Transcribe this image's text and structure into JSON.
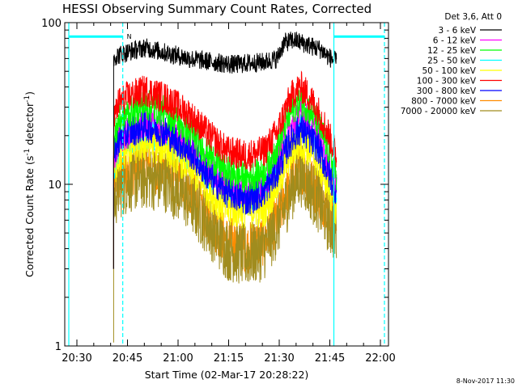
{
  "chart_data": {
    "type": "line",
    "title": "HESSI Observing Summary Count Rates, Corrected",
    "xlabel": "Start Time (02-Mar-17 20:28:22)",
    "ylabel_main": "Corrected Count Rate (s",
    "ylabel_sup1": "-1",
    "ylabel_mid": " detector",
    "ylabel_sup2": "-1",
    "ylabel_end": ")",
    "x_unit": "minutes since 20:28:22",
    "xlim": [
      -2,
      94
    ],
    "ylim": [
      1,
      100
    ],
    "yscale": "log",
    "x_ticks": [
      {
        "label": "20:30",
        "value": 1.6
      },
      {
        "label": "20:45",
        "value": 16.6
      },
      {
        "label": "21:00",
        "value": 31.6
      },
      {
        "label": "21:15",
        "value": 46.6
      },
      {
        "label": "21:30",
        "value": 61.6
      },
      {
        "label": "21:45",
        "value": 76.6
      },
      {
        "label": "22:00",
        "value": 91.6
      }
    ],
    "y_ticks": [
      {
        "label": "1",
        "value": 1
      },
      {
        "label": "10",
        "value": 10
      },
      {
        "label": "100",
        "value": 100
      }
    ],
    "legend_header": "Det 3,6, Att 0",
    "timestamp": "8-Nov-2017 11:30",
    "night_marker": "N",
    "series": [
      {
        "name": "3 - 6 keV",
        "color": "#000000",
        "x": [
          12.5,
          13,
          15,
          18,
          22,
          28,
          35,
          42,
          48,
          52,
          57,
          61,
          63,
          66,
          70,
          74,
          76,
          78,
          78.6
        ],
        "y": [
          60,
          62,
          64,
          67,
          70,
          65,
          60,
          57,
          55,
          56,
          57,
          60,
          75,
          78,
          73,
          68,
          62,
          58,
          57
        ]
      },
      {
        "name": "6 - 12 keV",
        "color": "#ff00ff",
        "x": [
          12.5,
          14,
          17,
          22,
          28,
          35,
          41,
          46,
          52,
          57,
          61,
          64,
          66,
          68,
          70,
          73,
          76,
          78.6
        ],
        "y": [
          14,
          19,
          21,
          24,
          22,
          17,
          12,
          10,
          9,
          10,
          14,
          20,
          24,
          27,
          25,
          20,
          14,
          10
        ]
      },
      {
        "name": "12 - 25 keV",
        "color": "#00ff00",
        "x": [
          12.5,
          14,
          17,
          22,
          28,
          35,
          41,
          46,
          52,
          57,
          61,
          64,
          66,
          68,
          70,
          73,
          76,
          78.6
        ],
        "y": [
          18,
          25,
          28,
          31,
          28,
          21,
          15,
          12,
          11,
          12,
          17,
          25,
          30,
          33,
          30,
          24,
          17,
          11
        ]
      },
      {
        "name": "25 - 50 keV",
        "color": "#00ffff",
        "x": [
          12.5,
          14,
          17,
          22,
          28,
          35,
          41,
          46,
          52,
          57,
          61,
          64,
          66,
          68,
          70,
          73,
          76,
          78.6
        ],
        "y": [
          13,
          17,
          19,
          21,
          19,
          15,
          11,
          9,
          8,
          9,
          12,
          17,
          20,
          22,
          20,
          17,
          12,
          8
        ]
      },
      {
        "name": "50 - 100 keV",
        "color": "#ffff00",
        "x": [
          12.5,
          14,
          17,
          22,
          28,
          35,
          41,
          46,
          52,
          57,
          61,
          64,
          66,
          68,
          70,
          73,
          76,
          78.6
        ],
        "y": [
          12,
          15,
          17,
          18,
          17,
          13,
          9,
          7,
          7,
          7,
          10,
          14,
          17,
          18,
          17,
          14,
          10,
          7
        ]
      },
      {
        "name": "100 - 300 keV",
        "color": "#ff0000",
        "x": [
          12.5,
          14,
          17,
          22,
          28,
          35,
          41,
          46,
          52,
          57,
          61,
          64,
          66,
          68,
          70,
          73,
          76,
          78.6
        ],
        "y": [
          25,
          32,
          35,
          38,
          34,
          27,
          20,
          16,
          15,
          16,
          21,
          31,
          37,
          40,
          36,
          29,
          21,
          15
        ]
      },
      {
        "name": "300 - 800 keV",
        "color": "#0000ff",
        "x": [
          12.5,
          14,
          17,
          22,
          28,
          35,
          41,
          46,
          52,
          57,
          61,
          64,
          66,
          68,
          70,
          73,
          76,
          78.6
        ],
        "y": [
          15,
          19,
          21,
          23,
          21,
          16,
          11,
          9,
          8,
          9,
          12,
          17,
          20,
          22,
          20,
          17,
          12,
          9
        ]
      },
      {
        "name": "800 - 7000 keV",
        "color": "#ff8c00",
        "x": [
          12.5,
          14,
          17,
          22,
          28,
          35,
          41,
          46,
          52,
          57,
          61,
          64,
          66,
          68,
          70,
          73,
          76,
          78.6
        ],
        "y": [
          9,
          11,
          12,
          13,
          12,
          9,
          6,
          4.5,
          4,
          4.5,
          6,
          9,
          11,
          13,
          11,
          9,
          7,
          6
        ]
      },
      {
        "name": "7000 - 20000 keV",
        "color": "#a08c1e",
        "x": [
          12.5,
          14,
          17,
          22,
          28,
          35,
          41,
          46,
          52,
          57,
          61,
          64,
          66,
          68,
          70,
          73,
          76,
          78.6
        ],
        "y": [
          8,
          9.5,
          10.5,
          11,
          10.5,
          8,
          5.5,
          4,
          3.6,
          4,
          5.5,
          8,
          10,
          11.5,
          10,
          8,
          6,
          5
        ]
      }
    ],
    "vertical_lines": [
      {
        "x": -0.8,
        "style": "solid",
        "color": "#00ffff"
      },
      {
        "x": 15.2,
        "style": "dashed",
        "color": "#00ffff"
      },
      {
        "x": 77.8,
        "style": "solid",
        "color": "#00ffff"
      },
      {
        "x": 92.8,
        "style": "dashed",
        "color": "#00ffff"
      }
    ],
    "horizontal_bars": [
      {
        "x0": -0.8,
        "x1": 15.2,
        "y": 82,
        "color": "#00ffff"
      },
      {
        "x0": 77.8,
        "x1": 92.8,
        "y": 82,
        "color": "#00ffff"
      }
    ]
  }
}
